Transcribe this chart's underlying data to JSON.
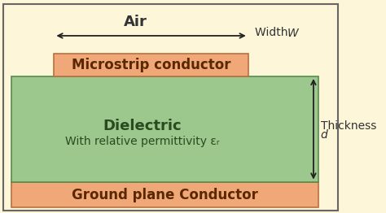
{
  "bg_color": "#fdf6d8",
  "dielectric_color": "#9dc88d",
  "dielectric_edge_color": "#5a8a50",
  "conductor_color": "#f0a878",
  "conductor_edge_color": "#b87040",
  "ground_color": "#f0a878",
  "ground_edge_color": "#b87040",
  "air_label": "Air",
  "air_label_fontsize": 13,
  "width_label": "Width ",
  "width_italic": "W",
  "thickness_label": "Thickness ",
  "thickness_italic": "d",
  "microstrip_label": "Microstrip conductor",
  "dielectric_label": "Dielectric",
  "dielectric_sublabel": "With relative permittivity εᵣ",
  "ground_label": "Ground plane Conductor",
  "label_fontsize": 12,
  "sub_fontsize": 10,
  "outer_edge_color": "#666666",
  "arrow_color": "#222222"
}
